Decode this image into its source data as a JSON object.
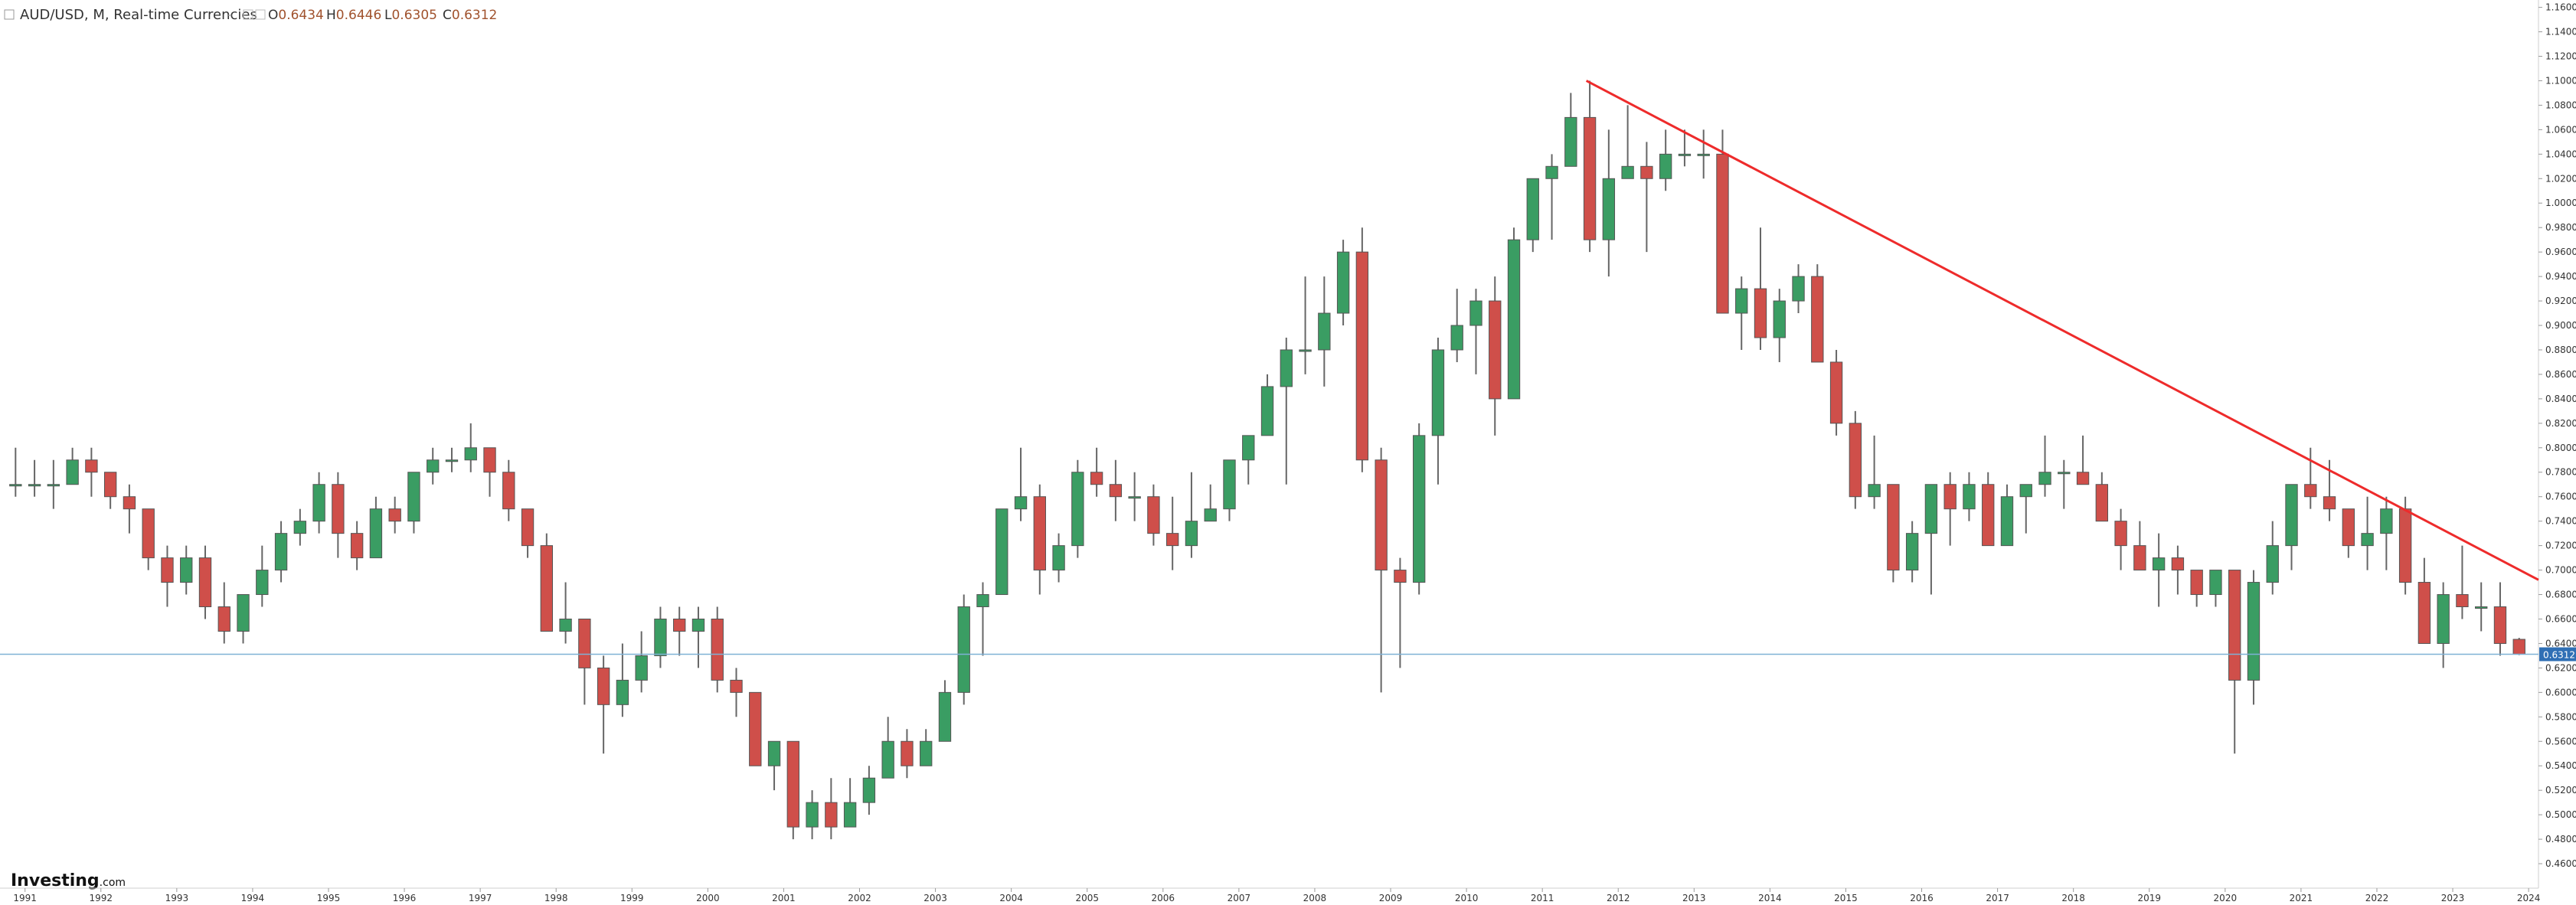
{
  "chart_data": {
    "type": "candlestick",
    "title": "AUD/USD, M, Real-time Currencies",
    "ohlc_header": [
      {
        "label": "O",
        "value": 0.6434
      },
      {
        "label": "H",
        "value": 0.6446
      },
      {
        "label": "L",
        "value": 0.6305
      },
      {
        "label": "C",
        "value": 0.6312
      }
    ],
    "last_price": 0.6312,
    "logo": "Investing",
    "logo_suffix": ".com",
    "up_color": "#3a9d63",
    "down_color": "#cf4f4a",
    "xlim": [
      1990.67,
      2024.13
    ],
    "xticks": [
      1991,
      1992,
      1993,
      1994,
      1995,
      1996,
      1997,
      1998,
      1999,
      2000,
      2001,
      2002,
      2003,
      2004,
      2005,
      2006,
      2007,
      2008,
      2009,
      2010,
      2011,
      2012,
      2013,
      2014,
      2015,
      2016,
      2017,
      2018,
      2019,
      2020,
      2021,
      2022,
      2023,
      2024
    ],
    "ylim": [
      0.44,
      1.166
    ],
    "yticks": [
      {
        "value": 0.46,
        "label": "0.4600"
      },
      {
        "value": 0.48,
        "label": "0.4800"
      },
      {
        "value": 0.5,
        "label": "0.5000"
      },
      {
        "value": 0.52,
        "label": "0.5200"
      },
      {
        "value": 0.54,
        "label": "0.5400"
      },
      {
        "value": 0.56,
        "label": "0.5600"
      },
      {
        "value": 0.58,
        "label": "0.5800"
      },
      {
        "value": 0.6,
        "label": "0.6000"
      },
      {
        "value": 0.62,
        "label": "0.6200"
      },
      {
        "value": 0.64,
        "label": "0.6400"
      },
      {
        "value": 0.66,
        "label": "0.6600"
      },
      {
        "value": 0.68,
        "label": "0.6800"
      },
      {
        "value": 0.7,
        "label": "0.7000"
      },
      {
        "value": 0.72,
        "label": "0.7200"
      },
      {
        "value": 0.74,
        "label": "0.7400"
      },
      {
        "value": 0.76,
        "label": "0.7600"
      },
      {
        "value": 0.78,
        "label": "0.7800"
      },
      {
        "value": 0.8,
        "label": "0.8000"
      },
      {
        "value": 0.82,
        "label": "0.8200"
      },
      {
        "value": 0.84,
        "label": "0.8400"
      },
      {
        "value": 0.86,
        "label": "0.8600"
      },
      {
        "value": 0.88,
        "label": "0.8800"
      },
      {
        "value": 0.9,
        "label": "0.9000"
      },
      {
        "value": 0.92,
        "label": "0.9200"
      },
      {
        "value": 0.94,
        "label": "0.9400"
      },
      {
        "value": 0.96,
        "label": "0.9600"
      },
      {
        "value": 0.98,
        "label": "0.9800"
      },
      {
        "value": 1,
        "label": "1.0000"
      },
      {
        "value": 1.02,
        "label": "1.0200"
      },
      {
        "value": 1.04,
        "label": "1.0400"
      },
      {
        "value": 1.06,
        "label": "1.0600"
      },
      {
        "value": 1.08,
        "label": "1.0800"
      },
      {
        "value": 1.1,
        "label": "1.1000"
      },
      {
        "value": 1.12,
        "label": "1.1200"
      },
      {
        "value": 1.14,
        "label": "1.1400"
      },
      {
        "value": 1.16,
        "label": "1.1600"
      }
    ],
    "trendline": {
      "x": [
        2011.58,
        2024.13
      ],
      "y": [
        1.1,
        0.692
      ],
      "color": "#ee2b2b"
    },
    "price_line_color": "#7fb1d6",
    "x": [
      1990.875,
      1991.125,
      1991.375,
      1991.625,
      1991.875,
      1992.125,
      1992.375,
      1992.625,
      1992.875,
      1993.125,
      1993.375,
      1993.625,
      1993.875,
      1994.125,
      1994.375,
      1994.625,
      1994.875,
      1995.125,
      1995.375,
      1995.625,
      1995.875,
      1996.125,
      1996.375,
      1996.625,
      1996.875,
      1997.125,
      1997.375,
      1997.625,
      1997.875,
      1998.125,
      1998.375,
      1998.625,
      1998.875,
      1999.125,
      1999.375,
      1999.625,
      1999.875,
      2000.125,
      2000.375,
      2000.625,
      2000.875,
      2001.125,
      2001.375,
      2001.625,
      2001.875,
      2002.125,
      2002.375,
      2002.625,
      2002.875,
      2003.125,
      2003.375,
      2003.625,
      2003.875,
      2004.125,
      2004.375,
      2004.625,
      2004.875,
      2005.125,
      2005.375,
      2005.625,
      2005.875,
      2006.125,
      2006.375,
      2006.625,
      2006.875,
      2007.125,
      2007.375,
      2007.625,
      2007.875,
      2008.125,
      2008.375,
      2008.625,
      2008.875,
      2009.125,
      2009.375,
      2009.625,
      2009.875,
      2010.125,
      2010.375,
      2010.625,
      2010.875,
      2011.125,
      2011.375,
      2011.625,
      2011.875,
      2012.125,
      2012.375,
      2012.625,
      2012.875,
      2013.125,
      2013.375,
      2013.625,
      2013.875,
      2014.125,
      2014.375,
      2014.625,
      2014.875,
      2015.125,
      2015.375,
      2015.625,
      2015.875,
      2016.125,
      2016.375,
      2016.625,
      2016.875,
      2017.125,
      2017.375,
      2017.625,
      2017.875,
      2018.125,
      2018.375,
      2018.625,
      2018.875,
      2019.125,
      2019.375,
      2019.625,
      2019.875,
      2020.125,
      2020.375,
      2020.625,
      2020.875,
      2021.125,
      2021.375,
      2021.625,
      2021.875,
      2022.125,
      2022.375,
      2022.625,
      2022.875,
      2023.125,
      2023.375,
      2023.625,
      2023.875
    ],
    "ohlc": [
      [
        0.77,
        0.8,
        0.76,
        0.77
      ],
      [
        0.77,
        0.79,
        0.76,
        0.77
      ],
      [
        0.77,
        0.79,
        0.75,
        0.77
      ],
      [
        0.77,
        0.8,
        0.77,
        0.79
      ],
      [
        0.79,
        0.8,
        0.76,
        0.78
      ],
      [
        0.78,
        0.78,
        0.75,
        0.76
      ],
      [
        0.76,
        0.77,
        0.73,
        0.75
      ],
      [
        0.75,
        0.75,
        0.7,
        0.71
      ],
      [
        0.71,
        0.72,
        0.67,
        0.69
      ],
      [
        0.69,
        0.72,
        0.68,
        0.71
      ],
      [
        0.71,
        0.72,
        0.66,
        0.67
      ],
      [
        0.67,
        0.69,
        0.64,
        0.65
      ],
      [
        0.65,
        0.68,
        0.64,
        0.68
      ],
      [
        0.68,
        0.72,
        0.67,
        0.7
      ],
      [
        0.7,
        0.74,
        0.69,
        0.73
      ],
      [
        0.73,
        0.75,
        0.72,
        0.74
      ],
      [
        0.74,
        0.78,
        0.73,
        0.77
      ],
      [
        0.77,
        0.78,
        0.71,
        0.73
      ],
      [
        0.73,
        0.74,
        0.7,
        0.71
      ],
      [
        0.71,
        0.76,
        0.71,
        0.75
      ],
      [
        0.75,
        0.76,
        0.73,
        0.74
      ],
      [
        0.74,
        0.78,
        0.73,
        0.78
      ],
      [
        0.78,
        0.8,
        0.77,
        0.79
      ],
      [
        0.79,
        0.8,
        0.78,
        0.79
      ],
      [
        0.79,
        0.82,
        0.78,
        0.8
      ],
      [
        0.8,
        0.8,
        0.76,
        0.78
      ],
      [
        0.78,
        0.79,
        0.74,
        0.75
      ],
      [
        0.75,
        0.75,
        0.71,
        0.72
      ],
      [
        0.72,
        0.73,
        0.65,
        0.65
      ],
      [
        0.65,
        0.69,
        0.64,
        0.66
      ],
      [
        0.66,
        0.66,
        0.59,
        0.62
      ],
      [
        0.62,
        0.63,
        0.55,
        0.59
      ],
      [
        0.59,
        0.64,
        0.58,
        0.61
      ],
      [
        0.61,
        0.65,
        0.6,
        0.63
      ],
      [
        0.63,
        0.67,
        0.62,
        0.66
      ],
      [
        0.66,
        0.67,
        0.63,
        0.65
      ],
      [
        0.65,
        0.67,
        0.62,
        0.66
      ],
      [
        0.66,
        0.67,
        0.6,
        0.61
      ],
      [
        0.61,
        0.62,
        0.58,
        0.6
      ],
      [
        0.6,
        0.6,
        0.54,
        0.54
      ],
      [
        0.54,
        0.56,
        0.52,
        0.56
      ],
      [
        0.56,
        0.56,
        0.48,
        0.49
      ],
      [
        0.49,
        0.52,
        0.48,
        0.51
      ],
      [
        0.51,
        0.53,
        0.48,
        0.49
      ],
      [
        0.49,
        0.53,
        0.49,
        0.51
      ],
      [
        0.51,
        0.54,
        0.5,
        0.53
      ],
      [
        0.53,
        0.58,
        0.53,
        0.56
      ],
      [
        0.56,
        0.57,
        0.53,
        0.54
      ],
      [
        0.54,
        0.57,
        0.54,
        0.56
      ],
      [
        0.56,
        0.61,
        0.56,
        0.6
      ],
      [
        0.6,
        0.68,
        0.59,
        0.67
      ],
      [
        0.67,
        0.69,
        0.63,
        0.68
      ],
      [
        0.68,
        0.75,
        0.68,
        0.75
      ],
      [
        0.75,
        0.8,
        0.74,
        0.76
      ],
      [
        0.76,
        0.77,
        0.68,
        0.7
      ],
      [
        0.7,
        0.73,
        0.69,
        0.72
      ],
      [
        0.72,
        0.79,
        0.71,
        0.78
      ],
      [
        0.78,
        0.8,
        0.76,
        0.77
      ],
      [
        0.77,
        0.79,
        0.74,
        0.76
      ],
      [
        0.76,
        0.78,
        0.74,
        0.76
      ],
      [
        0.76,
        0.77,
        0.72,
        0.73
      ],
      [
        0.73,
        0.76,
        0.7,
        0.72
      ],
      [
        0.72,
        0.78,
        0.71,
        0.74
      ],
      [
        0.74,
        0.77,
        0.74,
        0.75
      ],
      [
        0.75,
        0.79,
        0.74,
        0.79
      ],
      [
        0.79,
        0.81,
        0.77,
        0.81
      ],
      [
        0.81,
        0.86,
        0.81,
        0.85
      ],
      [
        0.85,
        0.89,
        0.77,
        0.88
      ],
      [
        0.88,
        0.94,
        0.86,
        0.88
      ],
      [
        0.88,
        0.94,
        0.85,
        0.91
      ],
      [
        0.91,
        0.97,
        0.9,
        0.96
      ],
      [
        0.96,
        0.98,
        0.78,
        0.79
      ],
      [
        0.79,
        0.8,
        0.6,
        0.7
      ],
      [
        0.7,
        0.71,
        0.62,
        0.69
      ],
      [
        0.69,
        0.82,
        0.68,
        0.81
      ],
      [
        0.81,
        0.89,
        0.77,
        0.88
      ],
      [
        0.88,
        0.93,
        0.87,
        0.9
      ],
      [
        0.9,
        0.93,
        0.86,
        0.92
      ],
      [
        0.92,
        0.94,
        0.81,
        0.84
      ],
      [
        0.84,
        0.98,
        0.84,
        0.97
      ],
      [
        0.97,
        1.02,
        0.96,
        1.02
      ],
      [
        1.02,
        1.04,
        0.97,
        1.03
      ],
      [
        1.03,
        1.09,
        1.03,
        1.07
      ],
      [
        1.07,
        1.1,
        0.96,
        0.97
      ],
      [
        0.97,
        1.06,
        0.94,
        1.02
      ],
      [
        1.02,
        1.08,
        1.02,
        1.03
      ],
      [
        1.03,
        1.05,
        0.96,
        1.02
      ],
      [
        1.02,
        1.06,
        1.01,
        1.04
      ],
      [
        1.04,
        1.06,
        1.03,
        1.04
      ],
      [
        1.04,
        1.06,
        1.02,
        1.04
      ],
      [
        1.04,
        1.06,
        0.91,
        0.91
      ],
      [
        0.91,
        0.94,
        0.88,
        0.93
      ],
      [
        0.93,
        0.98,
        0.88,
        0.89
      ],
      [
        0.89,
        0.93,
        0.87,
        0.92
      ],
      [
        0.92,
        0.95,
        0.91,
        0.94
      ],
      [
        0.94,
        0.95,
        0.87,
        0.87
      ],
      [
        0.87,
        0.88,
        0.81,
        0.82
      ],
      [
        0.82,
        0.83,
        0.75,
        0.76
      ],
      [
        0.76,
        0.81,
        0.75,
        0.77
      ],
      [
        0.77,
        0.77,
        0.69,
        0.7
      ],
      [
        0.7,
        0.74,
        0.69,
        0.73
      ],
      [
        0.73,
        0.77,
        0.68,
        0.77
      ],
      [
        0.77,
        0.78,
        0.72,
        0.75
      ],
      [
        0.75,
        0.78,
        0.74,
        0.77
      ],
      [
        0.77,
        0.78,
        0.72,
        0.72
      ],
      [
        0.72,
        0.77,
        0.72,
        0.76
      ],
      [
        0.76,
        0.77,
        0.73,
        0.77
      ],
      [
        0.77,
        0.81,
        0.76,
        0.78
      ],
      [
        0.78,
        0.79,
        0.75,
        0.78
      ],
      [
        0.78,
        0.81,
        0.77,
        0.77
      ],
      [
        0.77,
        0.78,
        0.74,
        0.74
      ],
      [
        0.74,
        0.75,
        0.7,
        0.72
      ],
      [
        0.72,
        0.74,
        0.7,
        0.7
      ],
      [
        0.7,
        0.73,
        0.67,
        0.71
      ],
      [
        0.71,
        0.72,
        0.68,
        0.7
      ],
      [
        0.7,
        0.7,
        0.67,
        0.68
      ],
      [
        0.68,
        0.7,
        0.67,
        0.7
      ],
      [
        0.7,
        0.7,
        0.55,
        0.61
      ],
      [
        0.61,
        0.7,
        0.59,
        0.69
      ],
      [
        0.69,
        0.74,
        0.68,
        0.72
      ],
      [
        0.72,
        0.77,
        0.7,
        0.77
      ],
      [
        0.77,
        0.8,
        0.75,
        0.76
      ],
      [
        0.76,
        0.79,
        0.74,
        0.75
      ],
      [
        0.75,
        0.75,
        0.71,
        0.72
      ],
      [
        0.72,
        0.76,
        0.7,
        0.73
      ],
      [
        0.73,
        0.76,
        0.7,
        0.75
      ],
      [
        0.75,
        0.76,
        0.68,
        0.69
      ],
      [
        0.69,
        0.71,
        0.64,
        0.64
      ],
      [
        0.64,
        0.69,
        0.62,
        0.68
      ],
      [
        0.68,
        0.72,
        0.66,
        0.67
      ],
      [
        0.67,
        0.69,
        0.65,
        0.67
      ],
      [
        0.67,
        0.69,
        0.63,
        0.64
      ],
      [
        0.6434,
        0.6446,
        0.6305,
        0.6312
      ]
    ]
  }
}
